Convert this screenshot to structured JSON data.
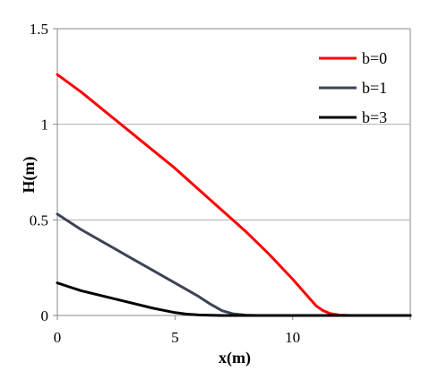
{
  "chart_data": {
    "type": "line",
    "xlabel": "x(m)",
    "ylabel": "H(m)",
    "xlim": [
      0,
      15
    ],
    "ylim": [
      0,
      1.5
    ],
    "x_ticks": [
      "0",
      "5",
      "10"
    ],
    "y_ticks": [
      "0",
      "0.5",
      "1",
      "1.5"
    ],
    "grid": "horizontal",
    "legend_position": "top-right",
    "series": [
      {
        "name": "b=0",
        "color": "#ff0000",
        "x": [
          0,
          1,
          2,
          3,
          4,
          5,
          6,
          7,
          8,
          9,
          10,
          10.5,
          11,
          11.3,
          11.6,
          12,
          12.4,
          13,
          14,
          15
        ],
        "y": [
          1.26,
          1.17,
          1.07,
          0.97,
          0.87,
          0.77,
          0.66,
          0.55,
          0.44,
          0.32,
          0.19,
          0.12,
          0.05,
          0.025,
          0.01,
          0.002,
          0,
          0,
          0,
          0
        ]
      },
      {
        "name": "b=1",
        "color": "#3c4356",
        "x": [
          0,
          1,
          2,
          3,
          4,
          5,
          6,
          6.5,
          7,
          7.5,
          8,
          8.5,
          9,
          10,
          12,
          15
        ],
        "y": [
          0.53,
          0.45,
          0.38,
          0.31,
          0.24,
          0.17,
          0.1,
          0.06,
          0.025,
          0.008,
          0.002,
          0,
          0,
          0,
          0,
          0
        ],
        "x_note": ""
      },
      {
        "name": "b=3",
        "color": "#000000",
        "x": [
          0,
          0.5,
          1,
          2,
          3,
          4,
          4.5,
          5,
          5.5,
          6,
          6.5,
          7,
          8,
          10,
          15
        ],
        "y": [
          0.17,
          0.15,
          0.13,
          0.1,
          0.07,
          0.04,
          0.027,
          0.015,
          0.007,
          0.003,
          0.001,
          0,
          0,
          0,
          0
        ]
      }
    ]
  }
}
